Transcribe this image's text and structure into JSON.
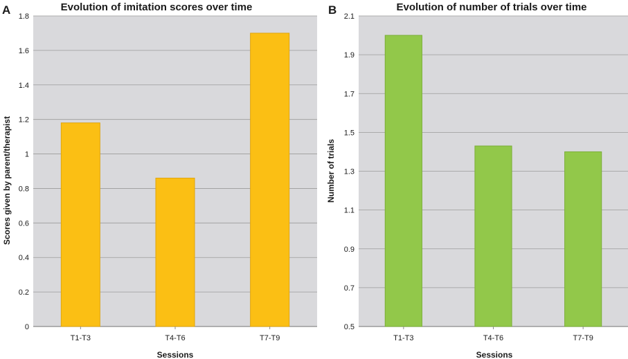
{
  "colors": {
    "plot_bg": "#d9d9dc",
    "grid": "#9a9a9a",
    "axis": "#8a8a8a"
  },
  "chart_data": [
    {
      "panel": "A",
      "type": "bar",
      "title": "Evolution of imitation scores over time",
      "xlabel": "Sessions",
      "ylabel": "Scores given by parent/therapist",
      "categories": [
        "T1-T3",
        "T4-T6",
        "T7-T9"
      ],
      "values": [
        1.18,
        0.86,
        1.7
      ],
      "ylim": [
        0,
        1.8
      ],
      "yticks": [
        0,
        0.2,
        0.4,
        0.6,
        0.8,
        1,
        1.2,
        1.4,
        1.6,
        1.8
      ],
      "grid": true,
      "bar_color": "#fbbf14",
      "bar_edge": "#e0a50e"
    },
    {
      "panel": "B",
      "type": "bar",
      "title": "Evolution of number of trials over time",
      "xlabel": "Sessions",
      "ylabel": "Number of trials",
      "categories": [
        "T1-T3",
        "T4-T6",
        "T7-T9"
      ],
      "values": [
        2.0,
        1.43,
        1.4
      ],
      "ylim": [
        0.5,
        2.1
      ],
      "yticks": [
        0.5,
        0.7,
        0.9,
        1.1,
        1.3,
        1.5,
        1.7,
        1.9,
        2.1
      ],
      "grid": true,
      "bar_color": "#92c84a",
      "bar_edge": "#7aae38"
    }
  ]
}
